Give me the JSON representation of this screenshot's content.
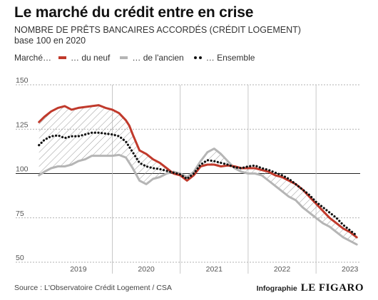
{
  "header": {
    "title": "Le marché du crédit entre en crise",
    "subtitle_line1": "NOMBRE DE PRÊTS BANCAIRES ACCORDÉS (CRÉDIT LOGEMENT)",
    "subtitle_line2": "base 100 en 2020"
  },
  "legend": {
    "lead": "Marché…",
    "items": [
      {
        "label": "… du neuf",
        "color": "#c0392b",
        "style": "solid"
      },
      {
        "label": "… de l'ancien",
        "color": "#b5b5b5",
        "style": "solid"
      },
      {
        "label": "… Ensemble",
        "color": "#111111",
        "style": "dotted"
      }
    ]
  },
  "footer": {
    "source": "Source : L'Observatoire Crédit Logement / CSA",
    "credit_label": "Infographie",
    "credit_brand": "LE FIGARO"
  },
  "chart_data": {
    "type": "line",
    "title": "Le marché du crédit entre en crise",
    "ylim": [
      50,
      150
    ],
    "yticks": [
      50,
      75,
      100,
      125,
      150
    ],
    "baseline": 100,
    "xlim": [
      2018.35,
      2023.15
    ],
    "year_labels": [
      {
        "label": "2019",
        "at": 2019.0
      },
      {
        "label": "2020",
        "at": 2020.0
      },
      {
        "label": "2021",
        "at": 2021.0
      },
      {
        "label": "2022",
        "at": 2022.0
      },
      {
        "label": "2023",
        "at": 2023.0
      }
    ],
    "vertical_gridlines_at": [
      2019.5,
      2020.5,
      2021.5,
      2022.5
    ],
    "hatched_area": "between du neuf and de l'ancien",
    "x": [
      2018.42,
      2018.5,
      2018.6,
      2018.7,
      2018.8,
      2018.9,
      2019.0,
      2019.1,
      2019.2,
      2019.3,
      2019.4,
      2019.5,
      2019.6,
      2019.7,
      2019.75,
      2019.8,
      2019.9,
      2020.0,
      2020.1,
      2020.2,
      2020.3,
      2020.4,
      2020.5,
      2020.6,
      2020.7,
      2020.8,
      2020.9,
      2021.0,
      2021.1,
      2021.2,
      2021.3,
      2021.4,
      2021.5,
      2021.6,
      2021.7,
      2021.8,
      2021.9,
      2022.0,
      2022.1,
      2022.2,
      2022.3,
      2022.4,
      2022.5,
      2022.6,
      2022.7,
      2022.8,
      2022.9,
      2023.0,
      2023.1
    ],
    "series": [
      {
        "name": "… du neuf",
        "color": "#c0392b",
        "values": [
          129,
          132,
          135,
          137,
          138,
          136,
          137,
          137.5,
          138,
          138.5,
          137,
          136,
          134,
          130,
          127,
          122,
          113,
          111,
          108,
          106,
          103,
          100,
          99,
          96,
          99,
          104,
          105,
          105,
          104,
          104.5,
          104,
          103,
          103,
          103,
          102,
          101,
          99,
          98,
          96,
          94,
          91,
          87,
          83,
          79,
          75,
          72,
          69,
          67,
          64
        ]
      },
      {
        "name": "… de l'ancien",
        "color": "#b5b5b5",
        "values": [
          99,
          101,
          103,
          104,
          104,
          105,
          107,
          108,
          110,
          110,
          110,
          110,
          110.5,
          109,
          106,
          103,
          96,
          94,
          97,
          98,
          100,
          101,
          100,
          98,
          101,
          107,
          112,
          114,
          111,
          107,
          103,
          101,
          100,
          100,
          99,
          96,
          93,
          90,
          87,
          85,
          81,
          78,
          75,
          72,
          70,
          67,
          64,
          62,
          60
        ]
      },
      {
        "name": "… Ensemble",
        "color": "#111111",
        "values": [
          116,
          119,
          121,
          121.5,
          120,
          121,
          121,
          122,
          123,
          123,
          122.5,
          122,
          121,
          118,
          115,
          112,
          106,
          104,
          103,
          102.5,
          101.5,
          100.5,
          99.5,
          97,
          100,
          105,
          107.5,
          107,
          106,
          105,
          103.5,
          103,
          104,
          104.5,
          103,
          102,
          100.5,
          99,
          97,
          94,
          91,
          88,
          84,
          81,
          78,
          75,
          71,
          68,
          65
        ]
      }
    ]
  }
}
